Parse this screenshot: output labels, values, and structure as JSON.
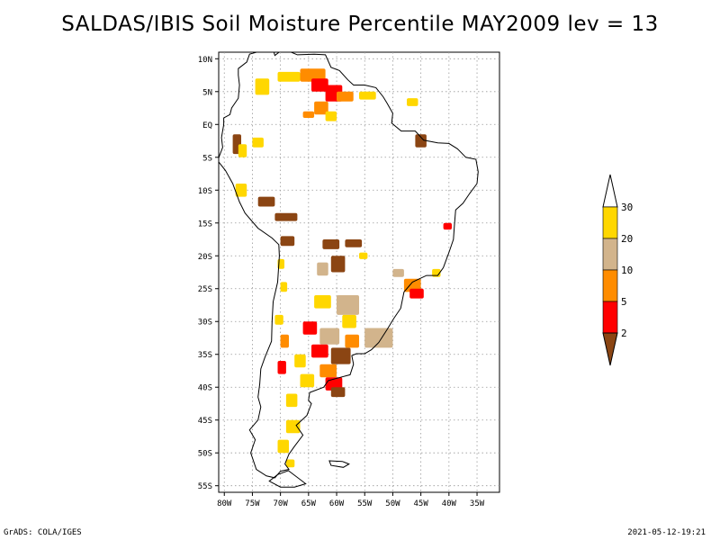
{
  "title": "SALDAS/IBIS Soil Moisture Percentile MAY2009 lev = 13",
  "map": {
    "lon_range": [
      -81,
      -31
    ],
    "lat_range": [
      -56,
      11
    ],
    "lat_labels": [
      {
        "lat": 10,
        "text": "10N"
      },
      {
        "lat": 5,
        "text": "5N"
      },
      {
        "lat": 0,
        "text": "EQ"
      },
      {
        "lat": -5,
        "text": "5S"
      },
      {
        "lat": -10,
        "text": "10S"
      },
      {
        "lat": -15,
        "text": "15S"
      },
      {
        "lat": -20,
        "text": "20S"
      },
      {
        "lat": -25,
        "text": "25S"
      },
      {
        "lat": -30,
        "text": "30S"
      },
      {
        "lat": -35,
        "text": "35S"
      },
      {
        "lat": -40,
        "text": "40S"
      },
      {
        "lat": -45,
        "text": "45S"
      },
      {
        "lat": -50,
        "text": "50S"
      },
      {
        "lat": -55,
        "text": "55S"
      }
    ],
    "lon_labels": [
      {
        "lon": -80,
        "text": "80W"
      },
      {
        "lon": -75,
        "text": "75W"
      },
      {
        "lon": -70,
        "text": "70W"
      },
      {
        "lon": -65,
        "text": "65W"
      },
      {
        "lon": -60,
        "text": "60W"
      },
      {
        "lon": -55,
        "text": "55W"
      },
      {
        "lon": -50,
        "text": "50W"
      },
      {
        "lon": -45,
        "text": "45W"
      },
      {
        "lon": -40,
        "text": "40W"
      },
      {
        "lon": -35,
        "text": "35W"
      }
    ],
    "grid": "dotted",
    "colors": {
      "below_2": "#8b4513",
      "2_5": "#ff0000",
      "5_10": "#ff8c00",
      "10_20": "#d2b48c",
      "20_30": "#ffd700",
      "above_30": "#ffffff"
    }
  },
  "legend": {
    "labels": [
      "2",
      "5",
      "10",
      "20",
      "30"
    ]
  },
  "footer_left": "GrADS: COLA/IGES",
  "footer_right": "2021-05-12-19:21"
}
